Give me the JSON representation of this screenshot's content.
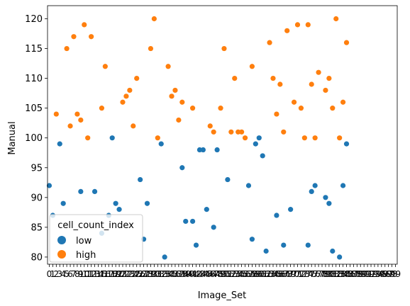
{
  "chart_data": {
    "type": "scatter",
    "xlabel": "Image_Set",
    "ylabel": "Manual",
    "ylim": [
      78.8,
      122.2
    ],
    "yticks": [
      80,
      85,
      90,
      95,
      100,
      105,
      110,
      115,
      120
    ],
    "x_tick_labels": [
      "0",
      "1",
      "2",
      "3",
      "4",
      "5",
      "6",
      "7",
      "8",
      "9",
      "10",
      "11",
      "12",
      "13",
      "14",
      "15",
      "16",
      "17",
      "18",
      "19",
      "20",
      "21",
      "22",
      "23",
      "24",
      "25",
      "26",
      "27",
      "28",
      "29",
      "30",
      "31",
      "32",
      "33",
      "34",
      "35",
      "36",
      "37",
      "38",
      "39",
      "40",
      "41",
      "42",
      "43",
      "44",
      "45",
      "46",
      "47",
      "48",
      "49",
      "50",
      "51",
      "52",
      "53",
      "54",
      "55",
      "56",
      "57",
      "58",
      "59",
      "60",
      "61",
      "62",
      "63",
      "64",
      "65",
      "66",
      "67",
      "68",
      "69",
      "70",
      "71",
      "72",
      "73",
      "74",
      "75",
      "76",
      "77",
      "78",
      "79",
      "80",
      "81",
      "82",
      "83",
      "84",
      "85",
      "86",
      "87",
      "88",
      "89",
      "90",
      "91",
      "92",
      "93",
      "94",
      "95",
      "96",
      "97",
      "98",
      "99"
    ],
    "legend": {
      "title": "cell_count_index",
      "position": "lower-left"
    },
    "grid": false,
    "series": [
      {
        "name": "low",
        "color": "#1f77b4",
        "points": [
          [
            0,
            92
          ],
          [
            1,
            87
          ],
          [
            3,
            99
          ],
          [
            4,
            89
          ],
          [
            9,
            91
          ],
          [
            13,
            91
          ],
          [
            15,
            84
          ],
          [
            17,
            87
          ],
          [
            18,
            100
          ],
          [
            19,
            89
          ],
          [
            20,
            88
          ],
          [
            26,
            93
          ],
          [
            27,
            83
          ],
          [
            28,
            89
          ],
          [
            32,
            99
          ],
          [
            33,
            80
          ],
          [
            38,
            95
          ],
          [
            39,
            86
          ],
          [
            41,
            86
          ],
          [
            42,
            82
          ],
          [
            43,
            98
          ],
          [
            44,
            98
          ],
          [
            45,
            88
          ],
          [
            47,
            85
          ],
          [
            48,
            98
          ],
          [
            51,
            93
          ],
          [
            57,
            92
          ],
          [
            58,
            83
          ],
          [
            59,
            99
          ],
          [
            60,
            100
          ],
          [
            61,
            97
          ],
          [
            62,
            81
          ],
          [
            65,
            87
          ],
          [
            67,
            82
          ],
          [
            69,
            88
          ],
          [
            74,
            82
          ],
          [
            75,
            91
          ],
          [
            76,
            92
          ],
          [
            79,
            90
          ],
          [
            80,
            89
          ],
          [
            81,
            81
          ],
          [
            83,
            80
          ],
          [
            84,
            92
          ],
          [
            85,
            99
          ]
        ]
      },
      {
        "name": "high",
        "color": "#ff7f0e",
        "points": [
          [
            2,
            104
          ],
          [
            5,
            115
          ],
          [
            6,
            102
          ],
          [
            7,
            117
          ],
          [
            8,
            104
          ],
          [
            9,
            103
          ],
          [
            10,
            119
          ],
          [
            11,
            100
          ],
          [
            12,
            117
          ],
          [
            15,
            105
          ],
          [
            16,
            112
          ],
          [
            21,
            106
          ],
          [
            22,
            107
          ],
          [
            23,
            108
          ],
          [
            24,
            102
          ],
          [
            25,
            110
          ],
          [
            29,
            115
          ],
          [
            30,
            120
          ],
          [
            31,
            100
          ],
          [
            34,
            112
          ],
          [
            35,
            107
          ],
          [
            36,
            108
          ],
          [
            37,
            103
          ],
          [
            38,
            106
          ],
          [
            41,
            105
          ],
          [
            46,
            102
          ],
          [
            47,
            101
          ],
          [
            49,
            105
          ],
          [
            50,
            115
          ],
          [
            52,
            101
          ],
          [
            53,
            110
          ],
          [
            54,
            101
          ],
          [
            55,
            101
          ],
          [
            56,
            100
          ],
          [
            58,
            112
          ],
          [
            63,
            116
          ],
          [
            64,
            110
          ],
          [
            65,
            104
          ],
          [
            66,
            109
          ],
          [
            67,
            101
          ],
          [
            68,
            118
          ],
          [
            70,
            106
          ],
          [
            71,
            119
          ],
          [
            72,
            105
          ],
          [
            73,
            100
          ],
          [
            74,
            119
          ],
          [
            75,
            109
          ],
          [
            76,
            100
          ],
          [
            77,
            111
          ],
          [
            79,
            108
          ],
          [
            80,
            110
          ],
          [
            81,
            105
          ],
          [
            82,
            120
          ],
          [
            83,
            100
          ],
          [
            84,
            106
          ],
          [
            85,
            116
          ]
        ]
      }
    ]
  }
}
